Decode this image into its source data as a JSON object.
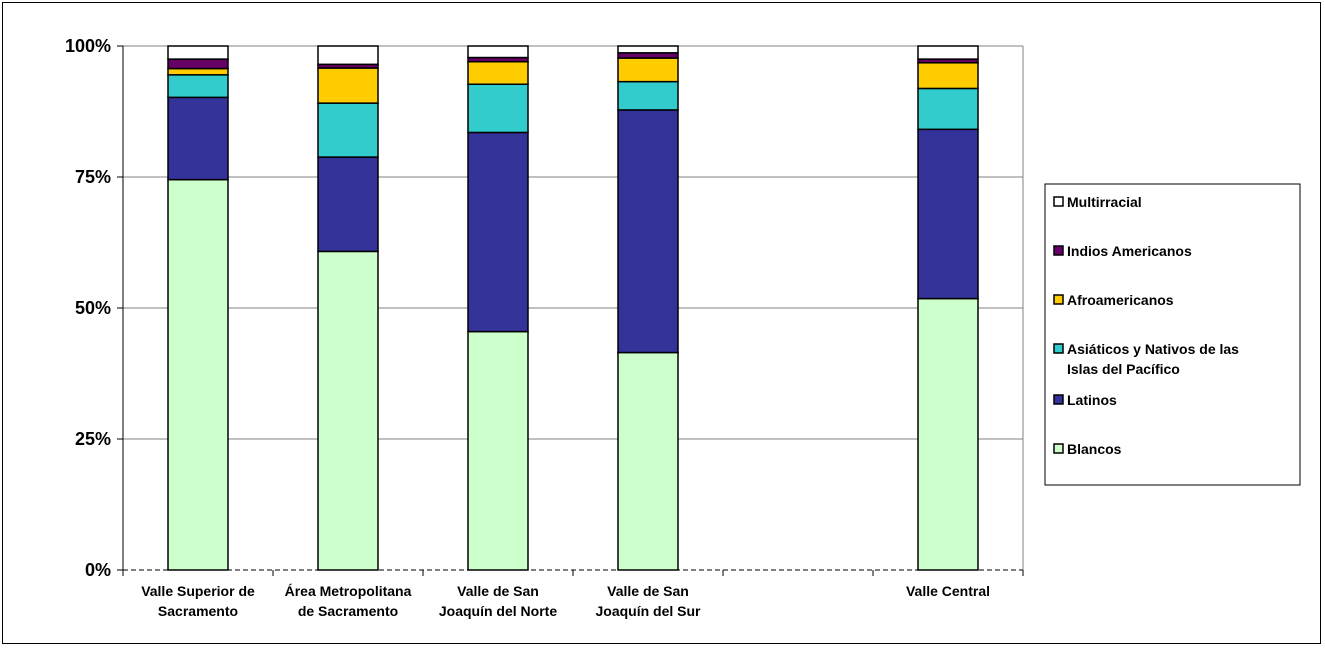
{
  "chart_data": {
    "type": "bar",
    "stacked": true,
    "percent": true,
    "categories": [
      [
        "Valle Superior de",
        "Sacramento"
      ],
      [
        "Área Metropolitana",
        "de Sacramento"
      ],
      [
        "Valle de San",
        "Joaquín del Norte"
      ],
      [
        "Valle de San",
        "Joaquín del Sur"
      ],
      [],
      [
        "Valle Central"
      ]
    ],
    "series": [
      {
        "name": "Blancos",
        "color": "#ccffcc",
        "values": [
          74.5,
          60.8,
          45.5,
          41.5,
          null,
          51.8
        ]
      },
      {
        "name": "Latinos",
        "color": "#333399",
        "values": [
          15.7,
          18.0,
          38.0,
          46.3,
          null,
          32.3
        ]
      },
      {
        "name": "Asiáticos y Nativos de las Islas del Pacífico",
        "color": "#33cccc",
        "values": [
          4.3,
          10.3,
          9.2,
          5.4,
          null,
          7.8
        ]
      },
      {
        "name": "Afroamericanos",
        "color": "#ffcc00",
        "values": [
          1.2,
          6.7,
          4.3,
          4.5,
          null,
          4.9
        ]
      },
      {
        "name": "Indios Americanos",
        "color": "#660066",
        "values": [
          1.8,
          0.7,
          0.8,
          1.0,
          null,
          0.7
        ]
      },
      {
        "name": "Multirracial",
        "color": "#ffffff",
        "values": [
          2.5,
          3.5,
          2.2,
          1.3,
          null,
          2.5
        ]
      }
    ],
    "ylim": [
      0,
      100
    ],
    "yticks": [
      "0%",
      "25%",
      "50%",
      "75%",
      "100%"
    ],
    "grid": true,
    "legend_position": "right"
  }
}
